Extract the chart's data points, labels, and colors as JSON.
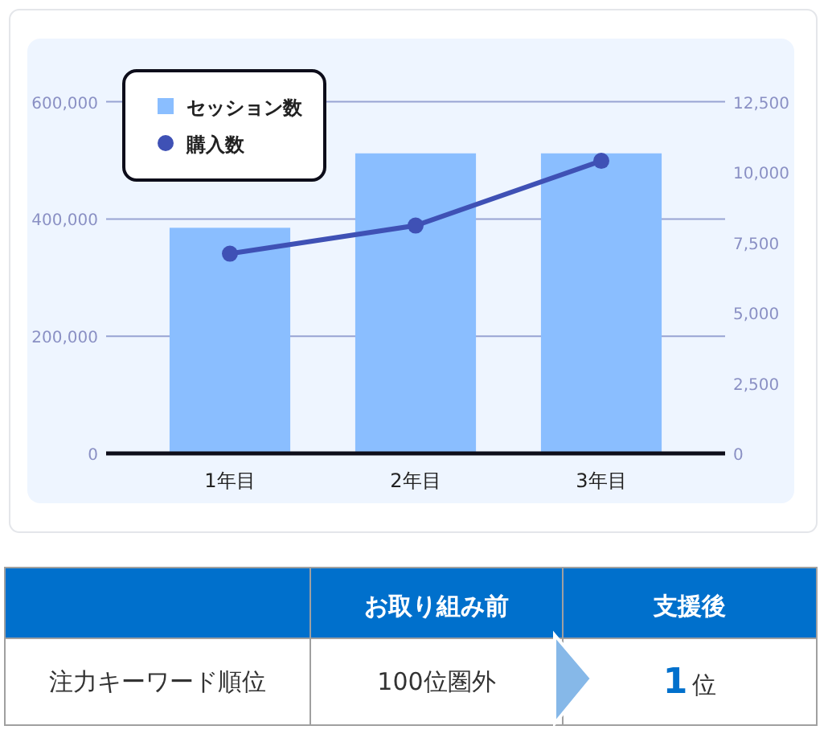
{
  "chart_data": [
    {
      "type": "bar",
      "categories": [
        "1年目",
        "2年目",
        "3年目"
      ],
      "series": [
        {
          "name": "セッション数",
          "color": "#8abeff",
          "values": [
            385000,
            512000,
            512000
          ]
        },
        {
          "name": "購入数",
          "type": "line",
          "axis": "y2",
          "color": "#3f51b5",
          "values": [
            7100,
            8100,
            10400
          ]
        }
      ],
      "ylim": [
        0,
        600000
      ],
      "yticks": [
        0,
        {
          "value": 200000,
          "label": "200,000"
        },
        {
          "value": 400000,
          "label": "400,000"
        },
        {
          "value": 600000,
          "label": "600,000"
        }
      ],
      "y2lim": [
        0,
        12500
      ],
      "y2ticks": [
        0,
        {
          "value": 2500,
          "label": "2,500"
        },
        {
          "value": 5000,
          "label": "5,000"
        },
        {
          "value": 7500,
          "label": "7,500"
        },
        {
          "value": 10000,
          "label": "10,000"
        },
        {
          "value": 12500,
          "label": "12,500"
        }
      ],
      "grid": "y",
      "legend": "top left",
      "marker": "circle"
    },
    {
      "type": "other",
      "annotations": [
        "お取り組み前",
        "支援後",
        "注力キーワード順位",
        "100位圏外",
        "1位"
      ]
    }
  ]
}
